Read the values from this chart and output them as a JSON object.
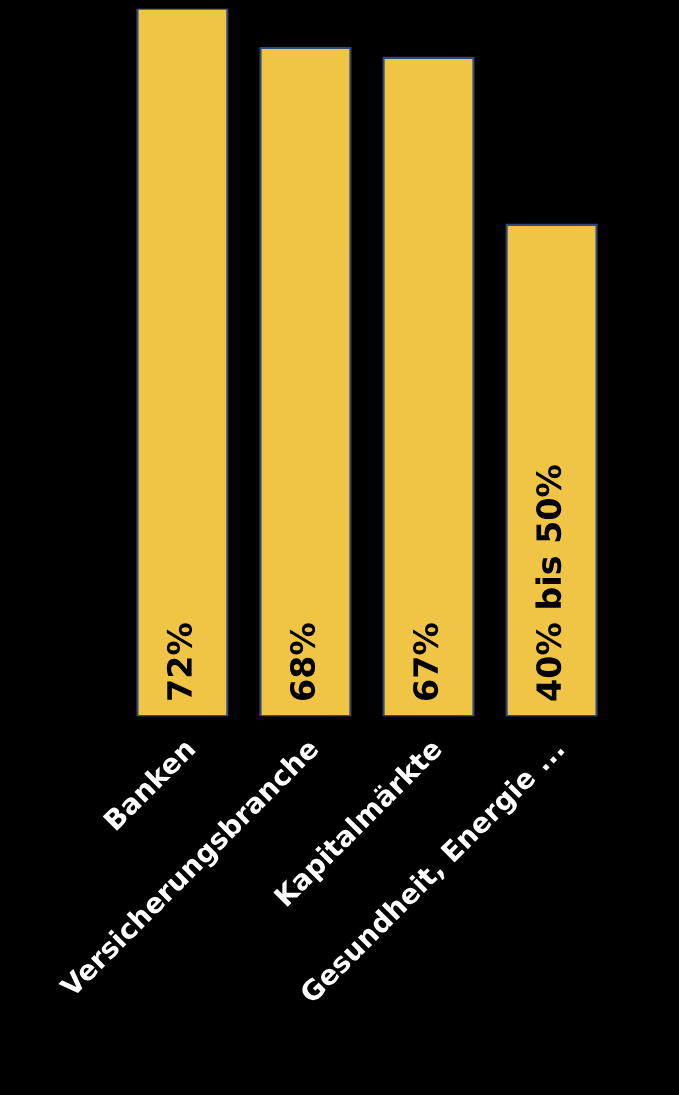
{
  "chart_data": {
    "type": "bar",
    "categories": [
      "Banken",
      "Versicherungsbranche",
      "Kapitalmärkte",
      "Gesundheit, Energie ..."
    ],
    "values": [
      72,
      68,
      67,
      50
    ],
    "color": "#f0c445",
    "value_labels": [
      "72%",
      "68%",
      "67%",
      "40% bis 50%"
    ],
    "grid": false,
    "legend": false
  }
}
